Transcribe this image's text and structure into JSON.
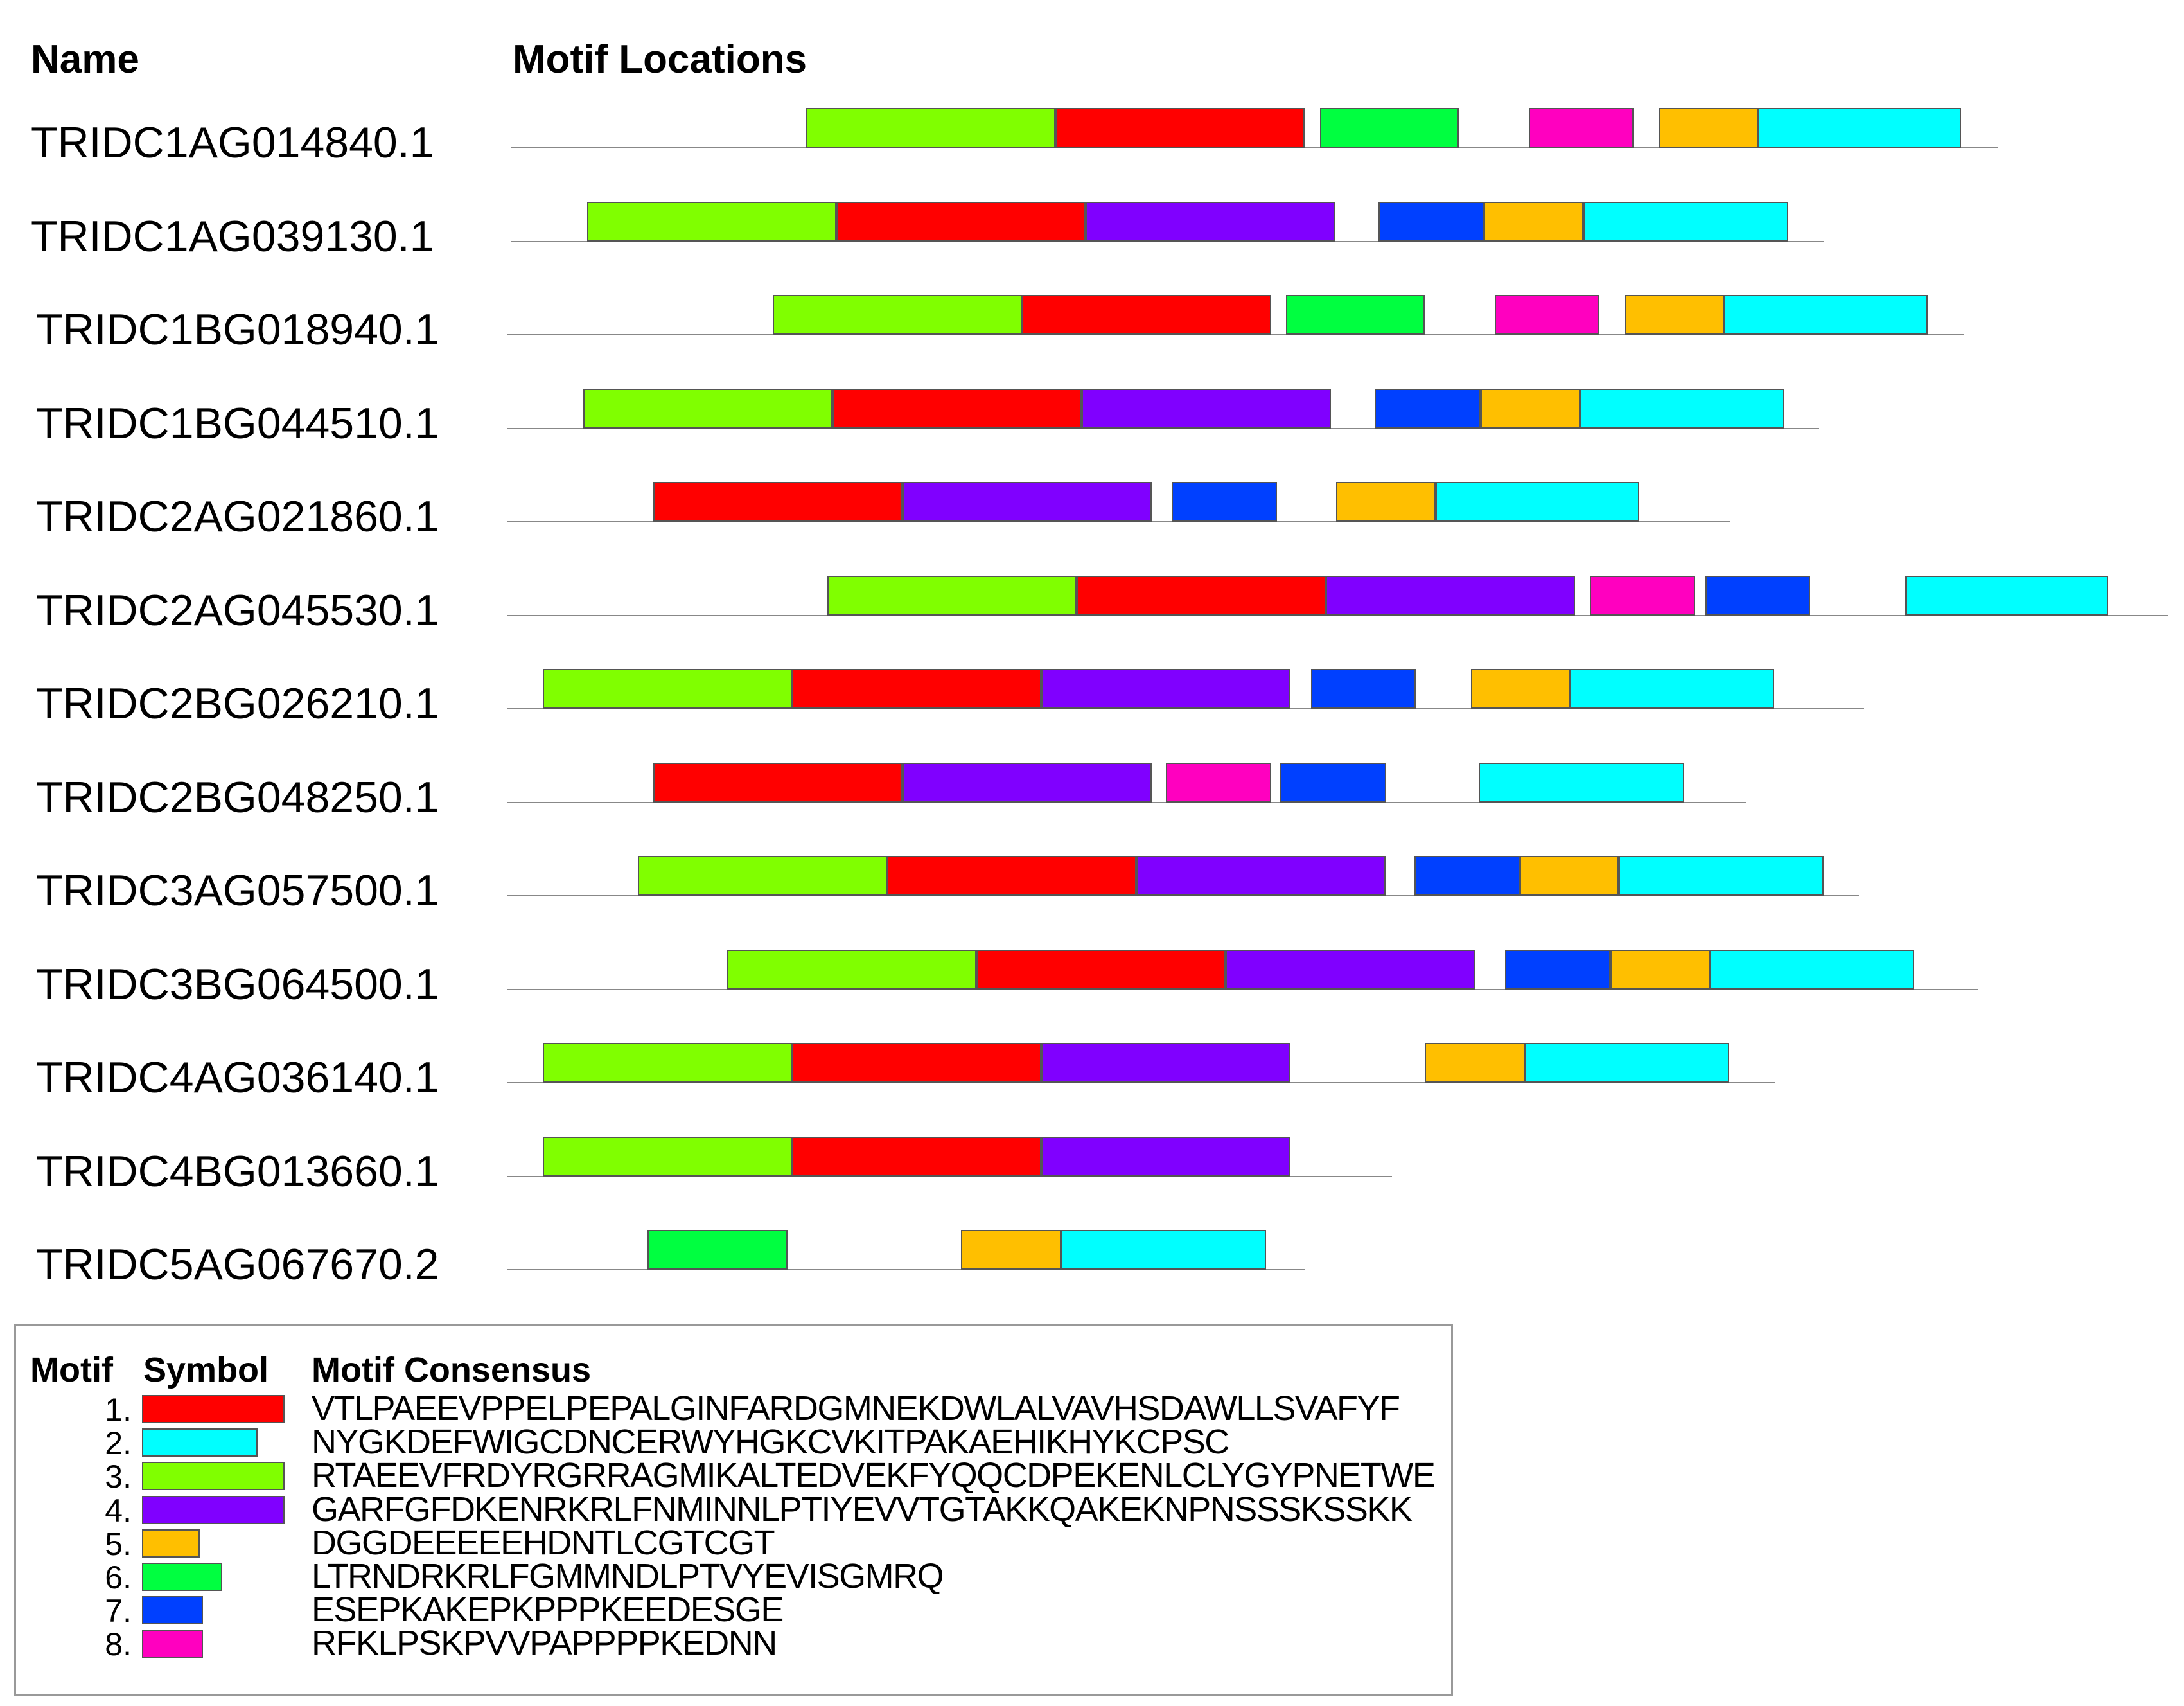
{
  "headers": {
    "name": "Name",
    "locations": "Motif Locations"
  },
  "motif_colors": {
    "1": "#ff0000",
    "2": "#00ffff",
    "3": "#80ff00",
    "4": "#8000ff",
    "5": "#ffbf00",
    "6": "#00ff40",
    "7": "#0040ff",
    "8": "#ff00bf"
  },
  "genes": [
    {
      "name": "TRIDC1AG014840.1",
      "motifs": [
        3,
        1,
        6,
        8,
        5,
        2
      ]
    },
    {
      "name": "TRIDC1AG039130.1",
      "motifs": [
        3,
        1,
        4,
        7,
        5,
        2
      ]
    },
    {
      "name": "TRIDC1BG018940.1",
      "motifs": [
        3,
        1,
        6,
        8,
        5,
        2
      ]
    },
    {
      "name": "TRIDC1BG044510.1",
      "motifs": [
        3,
        1,
        4,
        7,
        5,
        2
      ]
    },
    {
      "name": "TRIDC2AG021860.1",
      "motifs": [
        1,
        4,
        7,
        5,
        2
      ]
    },
    {
      "name": "TRIDC2AG045530.1",
      "motifs": [
        3,
        1,
        4,
        8,
        7,
        2
      ]
    },
    {
      "name": "TRIDC2BG026210.1",
      "motifs": [
        3,
        1,
        4,
        7,
        5,
        2
      ]
    },
    {
      "name": "TRIDC2BG048250.1",
      "motifs": [
        1,
        4,
        8,
        7,
        2
      ]
    },
    {
      "name": "TRIDC3AG057500.1",
      "motifs": [
        3,
        1,
        4,
        7,
        5,
        2
      ]
    },
    {
      "name": "TRIDC3BG064500.1",
      "motifs": [
        3,
        1,
        4,
        7,
        5,
        2
      ]
    },
    {
      "name": "TRIDC4AG036140.1",
      "motifs": [
        3,
        1,
        4,
        5,
        2
      ]
    },
    {
      "name": "TRIDC4BG013660.1",
      "motifs": [
        3,
        1,
        4
      ]
    },
    {
      "name": "TRIDC5AG067670.2",
      "motifs": [
        6,
        5,
        2
      ]
    }
  ],
  "legend": {
    "headers": {
      "motif": "Motif",
      "symbol": "Symbol",
      "consensus": "Motif Consensus"
    },
    "rows": [
      {
        "number": "1.",
        "motif": 1,
        "consensus": "VTLPAEEVPPELPEPALGINFARDGMNEKDWLALVAVHSDAWLLSVAFYF"
      },
      {
        "number": "2.",
        "motif": 2,
        "consensus": "NYGKDEFWIGCDNCERWYHGKCVKITPAKAEHIKHYKCPSC"
      },
      {
        "number": "3.",
        "motif": 3,
        "consensus": "RTAEEVFRDYRGRRAGMIKALTEDVEKFYQQCDPEKENLCLYGYPNETWE"
      },
      {
        "number": "4.",
        "motif": 4,
        "consensus": "GARFGFDKENRKRLFNMINNLPTIYEVVTGTAKKQAKEKNPNSSSKSSKK"
      },
      {
        "number": "5.",
        "motif": 5,
        "consensus": "DGGDEEEEEHDNTLCGTCGT"
      },
      {
        "number": "6.",
        "motif": 6,
        "consensus": "LTRNDRKRLFGMMNDLPTVYEVISGMRQ"
      },
      {
        "number": "7.",
        "motif": 7,
        "consensus": "ESEPKAKEPKPPPKEEDESGE"
      },
      {
        "number": "8.",
        "motif": 8,
        "consensus": "RFKLPSKPVVPAPPPPKEDNN"
      }
    ]
  }
}
